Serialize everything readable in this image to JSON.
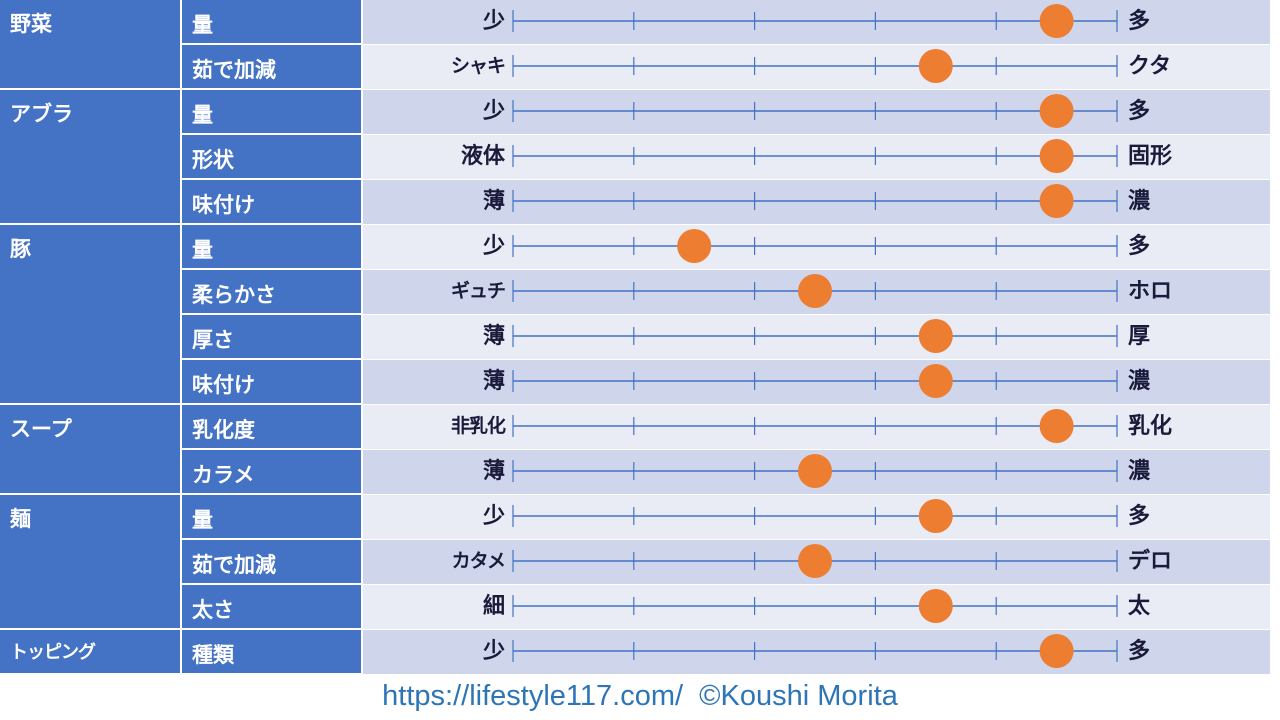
{
  "chart_data": {
    "type": "scatter",
    "colors": {
      "category_fill": "#4472c4",
      "band_dark": "#cfd5ea",
      "band_light": "#e9ebf5",
      "axis_line": "#4472c4",
      "marker": "#ed7d31"
    },
    "scale": {
      "min": 0,
      "max": 5,
      "divisions": 5
    },
    "groups": [
      {
        "name": "野菜",
        "rows": [
          {
            "item": "量",
            "low": "少",
            "high": "多",
            "value": 4.5
          },
          {
            "item": "茹で加減",
            "low": "シャキ",
            "high": "クタ",
            "value": 3.5
          }
        ]
      },
      {
        "name": "アブラ",
        "rows": [
          {
            "item": "量",
            "low": "少",
            "high": "多",
            "value": 4.5
          },
          {
            "item": "形状",
            "low": "液体",
            "high": "固形",
            "value": 4.5
          },
          {
            "item": "味付け",
            "low": "薄",
            "high": "濃",
            "value": 4.5
          }
        ]
      },
      {
        "name": "豚",
        "rows": [
          {
            "item": "量",
            "low": "少",
            "high": "多",
            "value": 1.5
          },
          {
            "item": "柔らかさ",
            "low": "ギュチ",
            "high": "ホロ",
            "value": 2.5
          },
          {
            "item": "厚さ",
            "low": "薄",
            "high": "厚",
            "value": 3.5
          },
          {
            "item": "味付け",
            "low": "薄",
            "high": "濃",
            "value": 3.5
          }
        ]
      },
      {
        "name": "スープ",
        "rows": [
          {
            "item": "乳化度",
            "low": "非乳化",
            "high": "乳化",
            "value": 4.5
          },
          {
            "item": "カラメ",
            "low": "薄",
            "high": "濃",
            "value": 2.5
          }
        ]
      },
      {
        "name": "麺",
        "rows": [
          {
            "item": "量",
            "low": "少",
            "high": "多",
            "value": 3.5
          },
          {
            "item": "茹で加減",
            "low": "カタメ",
            "high": "デロ",
            "value": 2.5
          },
          {
            "item": "太さ",
            "low": "細",
            "high": "太",
            "value": 3.5
          }
        ]
      },
      {
        "name": "トッピング",
        "rows": [
          {
            "item": "種類",
            "low": "少",
            "high": "多",
            "value": 4.5
          }
        ]
      }
    ]
  },
  "footer": {
    "url": "https://lifestyle117.com/",
    "copyright": "©Koushi Morita"
  }
}
